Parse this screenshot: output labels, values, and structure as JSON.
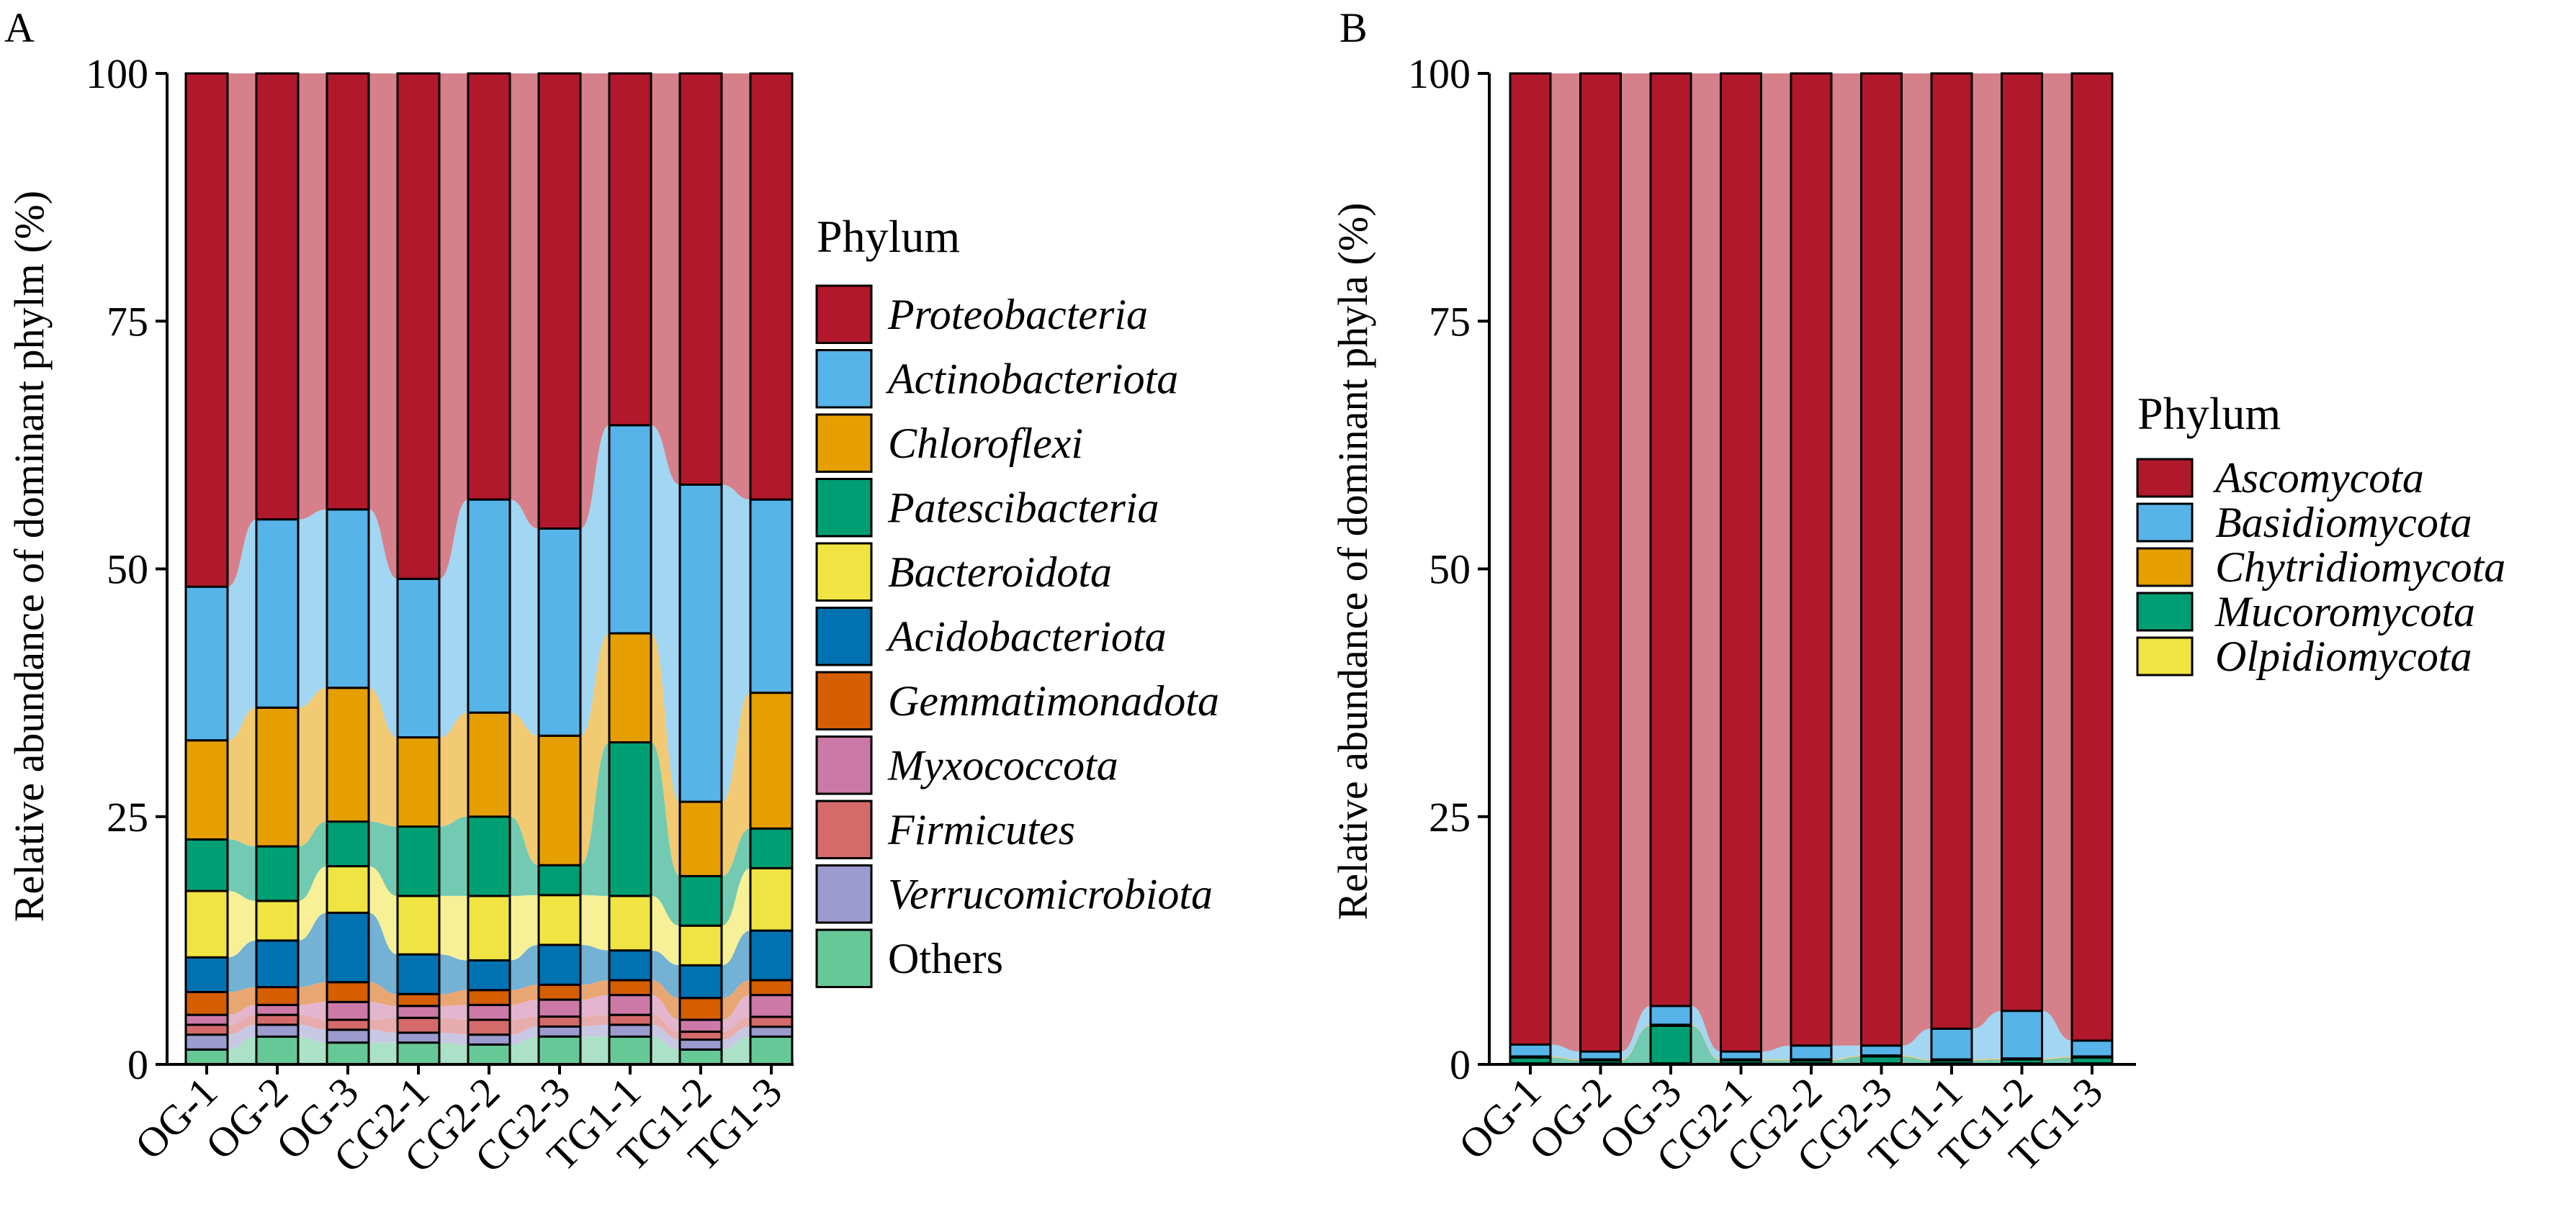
{
  "chart_data": [
    {
      "type": "bar",
      "stacked": true,
      "panel_label": "A",
      "ylabel": "Relative abundance of dominant phylm (%)",
      "ylim": [
        0,
        100
      ],
      "yticks": [
        0,
        25,
        50,
        75,
        100
      ],
      "grid": false,
      "legend_position": "right",
      "legend_title": "Phylum",
      "categories": [
        "OG-1",
        "OG-2",
        "OG-3",
        "CG2-1",
        "CG2-2",
        "CG2-3",
        "TG1-1",
        "TG1-2",
        "TG1-3"
      ],
      "series": [
        {
          "name": "Others",
          "italic": false,
          "color": "#67c897",
          "values": [
            1.5,
            2.8,
            2.2,
            2.2,
            2.0,
            2.8,
            2.8,
            1.5,
            2.8
          ]
        },
        {
          "name": "Verrucomicrobiota",
          "italic": true,
          "color": "#9b9bcf",
          "values": [
            1.5,
            1.2,
            1.3,
            1.0,
            1.0,
            1.0,
            1.2,
            1.0,
            1.0
          ]
        },
        {
          "name": "Firmicutes",
          "italic": true,
          "color": "#d46a6a",
          "values": [
            1.0,
            1.0,
            1.0,
            1.5,
            1.5,
            1.0,
            1.0,
            0.8,
            1.0
          ]
        },
        {
          "name": "Myxococcota",
          "italic": true,
          "color": "#cc79a7",
          "values": [
            1.0,
            1.0,
            1.8,
            1.2,
            1.5,
            1.7,
            2.0,
            1.2,
            2.2
          ]
        },
        {
          "name": "Gemmatimonadota",
          "italic": true,
          "color": "#d55e00",
          "values": [
            2.3,
            1.8,
            2.0,
            1.2,
            1.5,
            1.5,
            1.5,
            2.2,
            1.5
          ]
        },
        {
          "name": "Acidobacteriota",
          "italic": true,
          "color": "#0072b2",
          "values": [
            3.5,
            4.7,
            7.0,
            4.0,
            3.0,
            4.0,
            3.0,
            3.3,
            5.0
          ]
        },
        {
          "name": "Bacteroidota",
          "italic": true,
          "color": "#f0e442",
          "values": [
            6.7,
            4.0,
            4.7,
            5.9,
            6.5,
            5.0,
            5.5,
            4.0,
            6.3
          ]
        },
        {
          "name": "Patescibacteria",
          "italic": true,
          "color": "#009e73",
          "values": [
            5.2,
            5.5,
            4.5,
            7.0,
            8.0,
            3.0,
            15.5,
            5.0,
            4.0
          ]
        },
        {
          "name": "Chloroflexi",
          "italic": true,
          "color": "#e69f00",
          "values": [
            10.0,
            14.0,
            13.5,
            9.0,
            10.5,
            13.0,
            11.0,
            7.5,
            13.7
          ]
        },
        {
          "name": "Actinobacteriota",
          "italic": true,
          "color": "#56b4e9",
          "values": [
            15.5,
            19.0,
            18.0,
            16.0,
            21.5,
            20.8,
            21.0,
            32.0,
            19.5
          ]
        },
        {
          "name": "Proteobacteria",
          "italic": true,
          "color": "#b2182b",
          "values": [
            51.8,
            45.0,
            44.0,
            51.0,
            43.0,
            45.7,
            35.5,
            41.5,
            43.0
          ]
        }
      ]
    },
    {
      "type": "bar",
      "stacked": true,
      "panel_label": "B",
      "ylabel": "Relative abundance of dominant phyla (%)",
      "ylim": [
        0,
        100
      ],
      "yticks": [
        0,
        25,
        50,
        75,
        100
      ],
      "grid": false,
      "legend_position": "right",
      "legend_title": "Phylum",
      "categories": [
        "OG-1",
        "OG-2",
        "OG-3",
        "CG2-1",
        "CG2-2",
        "CG2-3",
        "TG1-1",
        "TG1-2",
        "TG1-3"
      ],
      "series": [
        {
          "name": "Olpidiomycota",
          "italic": true,
          "color": "#f0e442",
          "values": [
            0.1,
            0.1,
            0.1,
            0.1,
            0.1,
            0.1,
            0.1,
            0.1,
            0.1
          ]
        },
        {
          "name": "Mucoromycota",
          "italic": true,
          "color": "#009e73",
          "values": [
            0.6,
            0.3,
            3.8,
            0.3,
            0.3,
            0.7,
            0.3,
            0.4,
            0.6
          ]
        },
        {
          "name": "Chytridiomycota",
          "italic": true,
          "color": "#e69f00",
          "values": [
            0.1,
            0.1,
            0.1,
            0.1,
            0.1,
            0.1,
            0.1,
            0.1,
            0.1
          ]
        },
        {
          "name": "Basidiomycota",
          "italic": true,
          "color": "#56b4e9",
          "values": [
            1.2,
            0.8,
            1.9,
            0.8,
            1.4,
            1.0,
            3.1,
            4.8,
            1.6
          ]
        },
        {
          "name": "Ascomycota",
          "italic": true,
          "color": "#b2182b",
          "values": [
            98.0,
            98.7,
            94.1,
            98.7,
            98.1,
            98.1,
            96.4,
            94.6,
            97.6
          ]
        }
      ]
    }
  ]
}
